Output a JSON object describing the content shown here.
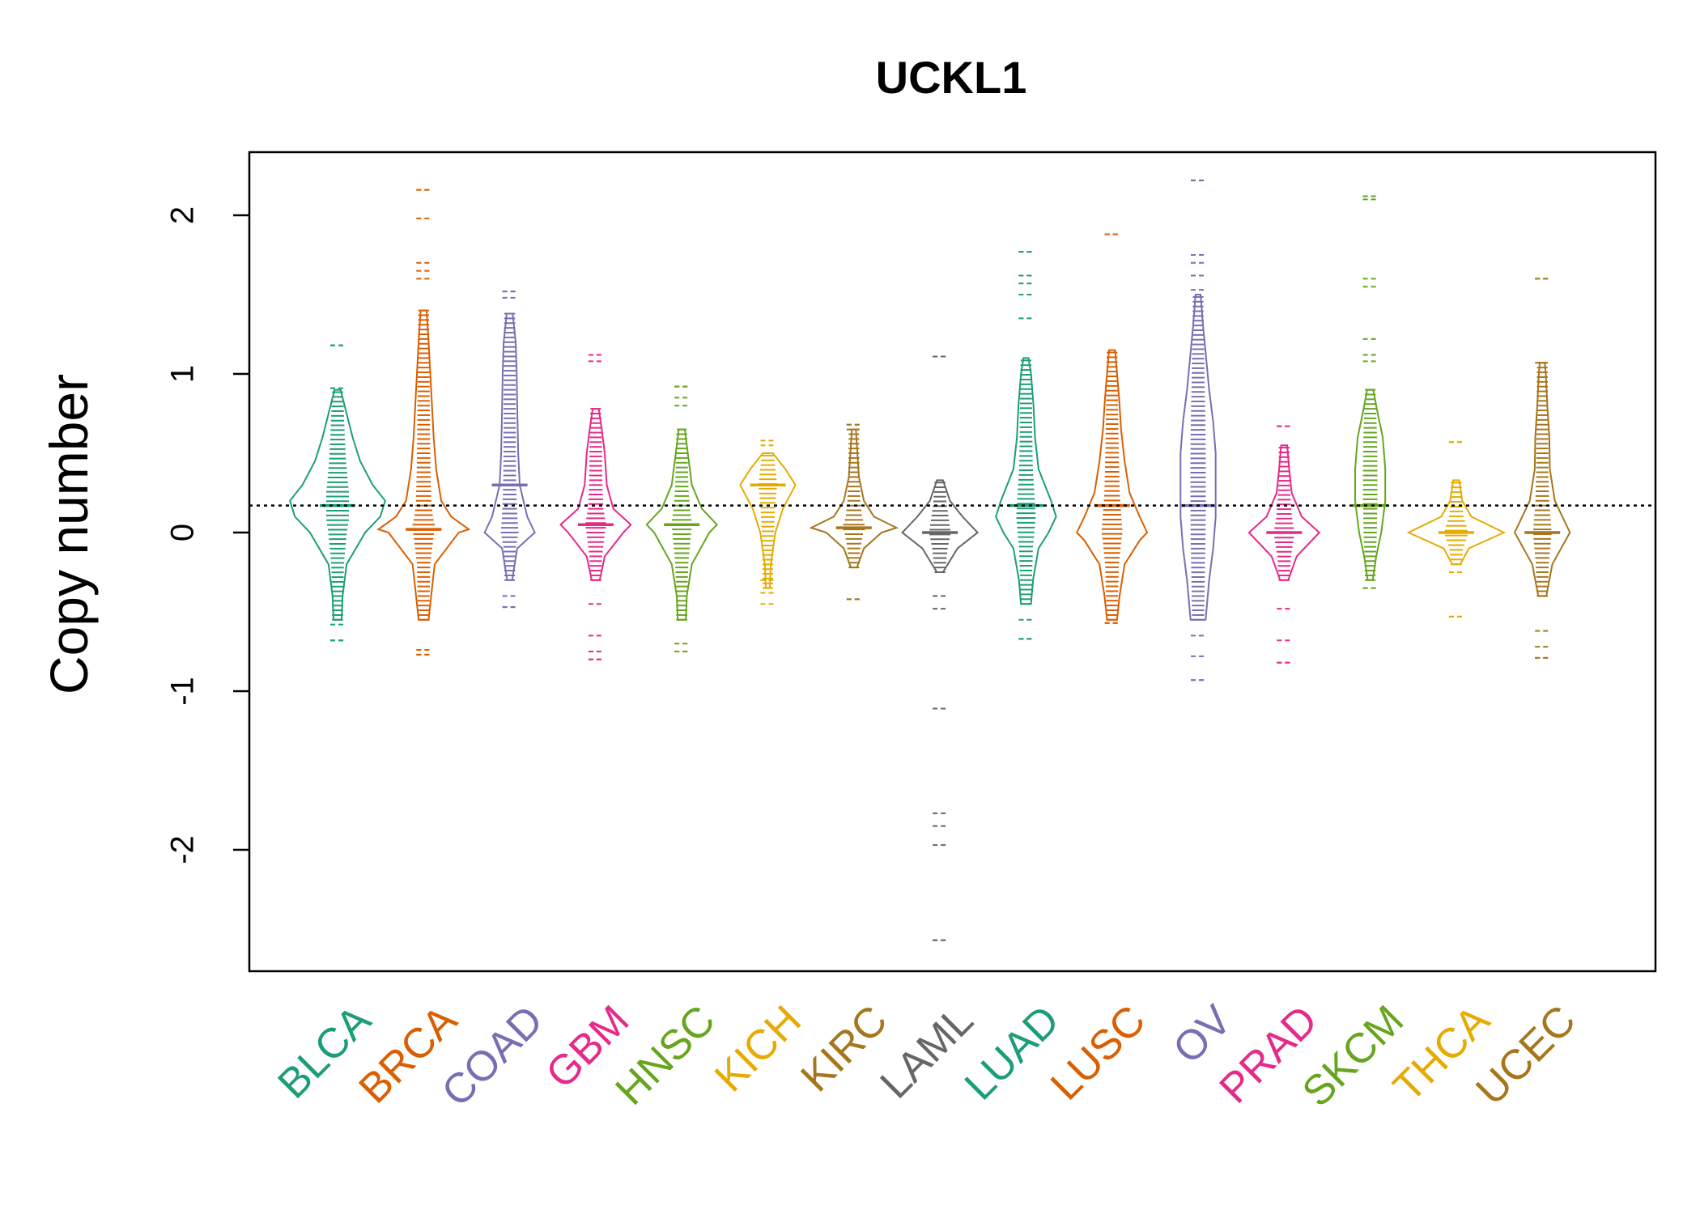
{
  "chart_data": {
    "type": "beanplot",
    "title": "UCKL1",
    "ylabel": "Copy number",
    "xlabel": "",
    "ylim": [
      -2.7,
      2.4
    ],
    "yticks": [
      -2,
      -1,
      0,
      1,
      2
    ],
    "reference_line": 0.17,
    "grid": false,
    "legend": "none",
    "categories": [
      {
        "name": "BLCA",
        "color": "#1B9E77",
        "median": 0.17,
        "min": -0.68,
        "max": 1.18,
        "density": [
          [
            -0.55,
            0.08
          ],
          [
            -0.4,
            0.1
          ],
          [
            -0.2,
            0.18
          ],
          [
            0,
            0.55
          ],
          [
            0.1,
            0.85
          ],
          [
            0.2,
            0.95
          ],
          [
            0.3,
            0.7
          ],
          [
            0.45,
            0.45
          ],
          [
            0.6,
            0.3
          ],
          [
            0.75,
            0.18
          ],
          [
            0.9,
            0.06
          ]
        ],
        "outliers": [
          1.18,
          0.91,
          -0.58,
          -0.68
        ]
      },
      {
        "name": "BRCA",
        "color": "#D95F02",
        "median": 0.02,
        "min": -0.77,
        "max": 2.16,
        "density": [
          [
            -0.55,
            0.1
          ],
          [
            -0.4,
            0.15
          ],
          [
            -0.2,
            0.22
          ],
          [
            0,
            0.7
          ],
          [
            0.02,
            0.9
          ],
          [
            0.1,
            0.55
          ],
          [
            0.2,
            0.35
          ],
          [
            0.4,
            0.25
          ],
          [
            0.6,
            0.2
          ],
          [
            0.9,
            0.15
          ],
          [
            1.2,
            0.1
          ],
          [
            1.4,
            0.06
          ]
        ],
        "outliers": [
          2.16,
          1.98,
          1.7,
          1.65,
          1.6,
          -0.74,
          -0.77
        ]
      },
      {
        "name": "COAD",
        "color": "#7570B3",
        "median": 0.3,
        "min": -0.47,
        "max": 1.52,
        "density": [
          [
            -0.3,
            0.05
          ],
          [
            -0.1,
            0.15
          ],
          [
            0,
            0.5
          ],
          [
            0.1,
            0.35
          ],
          [
            0.3,
            0.2
          ],
          [
            0.5,
            0.17
          ],
          [
            0.8,
            0.15
          ],
          [
            1.0,
            0.14
          ],
          [
            1.2,
            0.12
          ],
          [
            1.38,
            0.06
          ]
        ],
        "outliers": [
          1.52,
          1.48,
          -0.4,
          -0.47
        ]
      },
      {
        "name": "GBM",
        "color": "#E7298A",
        "median": 0.05,
        "min": -0.8,
        "max": 1.12,
        "density": [
          [
            -0.3,
            0.08
          ],
          [
            -0.15,
            0.18
          ],
          [
            0,
            0.55
          ],
          [
            0.05,
            0.7
          ],
          [
            0.15,
            0.35
          ],
          [
            0.3,
            0.22
          ],
          [
            0.5,
            0.18
          ],
          [
            0.65,
            0.12
          ],
          [
            0.78,
            0.06
          ]
        ],
        "outliers": [
          1.12,
          1.08,
          -0.45,
          -0.65,
          -0.75,
          -0.8
        ]
      },
      {
        "name": "HNSC",
        "color": "#66A61E",
        "median": 0.05,
        "min": -0.75,
        "max": 0.92,
        "density": [
          [
            -0.55,
            0.08
          ],
          [
            -0.4,
            0.1
          ],
          [
            -0.2,
            0.2
          ],
          [
            0,
            0.55
          ],
          [
            0.05,
            0.7
          ],
          [
            0.15,
            0.4
          ],
          [
            0.3,
            0.2
          ],
          [
            0.5,
            0.12
          ],
          [
            0.65,
            0.06
          ]
        ],
        "outliers": [
          0.92,
          0.85,
          0.8,
          -0.7,
          -0.75
        ]
      },
      {
        "name": "KICH",
        "color": "#E6AB02",
        "median": 0.3,
        "min": -0.45,
        "max": 0.58,
        "density": [
          [
            -0.35,
            0.04
          ],
          [
            -0.2,
            0.06
          ],
          [
            0,
            0.15
          ],
          [
            0.15,
            0.3
          ],
          [
            0.3,
            0.55
          ],
          [
            0.4,
            0.35
          ],
          [
            0.5,
            0.1
          ]
        ],
        "outliers": [
          -0.3,
          -0.38,
          0.55
        ]
      },
      {
        "name": "KIRC",
        "color": "#A6761D",
        "median": 0.03,
        "min": -0.42,
        "max": 0.68,
        "density": [
          [
            -0.22,
            0.06
          ],
          [
            -0.1,
            0.2
          ],
          [
            0,
            0.55
          ],
          [
            0.03,
            0.85
          ],
          [
            0.1,
            0.4
          ],
          [
            0.2,
            0.2
          ],
          [
            0.35,
            0.1
          ],
          [
            0.5,
            0.07
          ],
          [
            0.65,
            0.04
          ]
        ],
        "outliers": [
          0.68,
          0.65,
          -0.42
        ]
      },
      {
        "name": "LAML",
        "color": "#666666",
        "median": 0.0,
        "min": -2.57,
        "max": 1.11,
        "density": [
          [
            -0.25,
            0.06
          ],
          [
            -0.1,
            0.35
          ],
          [
            0,
            0.75
          ],
          [
            0.1,
            0.45
          ],
          [
            0.2,
            0.2
          ],
          [
            0.33,
            0.06
          ]
        ],
        "outliers": [
          1.11,
          -0.4,
          -0.48,
          -1.11,
          -1.77,
          -1.85,
          -1.97,
          -2.57
        ]
      },
      {
        "name": "LUAD",
        "color": "#1B9E77",
        "median": 0.17,
        "min": -0.67,
        "max": 1.77,
        "density": [
          [
            -0.45,
            0.1
          ],
          [
            -0.3,
            0.14
          ],
          [
            -0.1,
            0.25
          ],
          [
            0,
            0.45
          ],
          [
            0.1,
            0.6
          ],
          [
            0.2,
            0.5
          ],
          [
            0.4,
            0.25
          ],
          [
            0.6,
            0.18
          ],
          [
            0.8,
            0.15
          ],
          [
            1.0,
            0.1
          ],
          [
            1.1,
            0.05
          ]
        ],
        "outliers": [
          1.77,
          1.62,
          1.57,
          1.5,
          1.35,
          -0.55,
          -0.67
        ]
      },
      {
        "name": "LUSC",
        "color": "#D95F02",
        "median": 0.17,
        "min": -0.57,
        "max": 1.88,
        "density": [
          [
            -0.55,
            0.1
          ],
          [
            -0.4,
            0.15
          ],
          [
            -0.2,
            0.25
          ],
          [
            -0.05,
            0.55
          ],
          [
            0,
            0.7
          ],
          [
            0.1,
            0.55
          ],
          [
            0.25,
            0.35
          ],
          [
            0.45,
            0.25
          ],
          [
            0.65,
            0.18
          ],
          [
            0.85,
            0.14
          ],
          [
            1.0,
            0.1
          ],
          [
            1.15,
            0.06
          ]
        ],
        "outliers": [
          1.88,
          -0.57
        ]
      },
      {
        "name": "OV",
        "color": "#7570B3",
        "median": 0.17,
        "min": -0.93,
        "max": 2.22,
        "density": [
          [
            -0.55,
            0.15
          ],
          [
            -0.3,
            0.22
          ],
          [
            -0.1,
            0.3
          ],
          [
            0.1,
            0.35
          ],
          [
            0.3,
            0.35
          ],
          [
            0.5,
            0.35
          ],
          [
            0.7,
            0.3
          ],
          [
            0.9,
            0.22
          ],
          [
            1.1,
            0.16
          ],
          [
            1.3,
            0.1
          ],
          [
            1.5,
            0.05
          ]
        ],
        "outliers": [
          2.22,
          1.75,
          1.7,
          1.62,
          1.53,
          -0.65,
          -0.78,
          -0.93
        ]
      },
      {
        "name": "PRAD",
        "color": "#E7298A",
        "median": 0.0,
        "min": -0.82,
        "max": 0.67,
        "density": [
          [
            -0.3,
            0.08
          ],
          [
            -0.15,
            0.25
          ],
          [
            0,
            0.7
          ],
          [
            0.1,
            0.35
          ],
          [
            0.25,
            0.15
          ],
          [
            0.4,
            0.1
          ],
          [
            0.55,
            0.06
          ]
        ],
        "outliers": [
          0.67,
          -0.48,
          -0.68,
          -0.82
        ]
      },
      {
        "name": "SKCM",
        "color": "#66A61E",
        "median": 0.17,
        "min": -0.35,
        "max": 2.12,
        "density": [
          [
            -0.3,
            0.05
          ],
          [
            -0.15,
            0.12
          ],
          [
            0,
            0.22
          ],
          [
            0.2,
            0.3
          ],
          [
            0.4,
            0.3
          ],
          [
            0.6,
            0.25
          ],
          [
            0.75,
            0.15
          ],
          [
            0.9,
            0.06
          ]
        ],
        "outliers": [
          2.12,
          2.1,
          1.6,
          1.55,
          1.22,
          1.12,
          1.08,
          -0.35
        ]
      },
      {
        "name": "THCA",
        "color": "#E6AB02",
        "median": 0.0,
        "min": -0.53,
        "max": 0.57,
        "density": [
          [
            -0.2,
            0.08
          ],
          [
            -0.1,
            0.25
          ],
          [
            0,
            0.95
          ],
          [
            0.1,
            0.3
          ],
          [
            0.2,
            0.12
          ],
          [
            0.33,
            0.06
          ]
        ],
        "outliers": [
          0.57,
          -0.25,
          -0.53
        ]
      },
      {
        "name": "UCEC",
        "color": "#A6761D",
        "median": 0.0,
        "min": -0.79,
        "max": 1.6,
        "density": [
          [
            -0.4,
            0.08
          ],
          [
            -0.2,
            0.2
          ],
          [
            0,
            0.55
          ],
          [
            0.1,
            0.4
          ],
          [
            0.2,
            0.25
          ],
          [
            0.4,
            0.15
          ],
          [
            0.6,
            0.14
          ],
          [
            0.8,
            0.1
          ],
          [
            1.0,
            0.07
          ],
          [
            1.07,
            0.05
          ]
        ],
        "outliers": [
          1.6,
          1.07,
          -0.62,
          -0.72,
          -0.79
        ]
      }
    ]
  }
}
